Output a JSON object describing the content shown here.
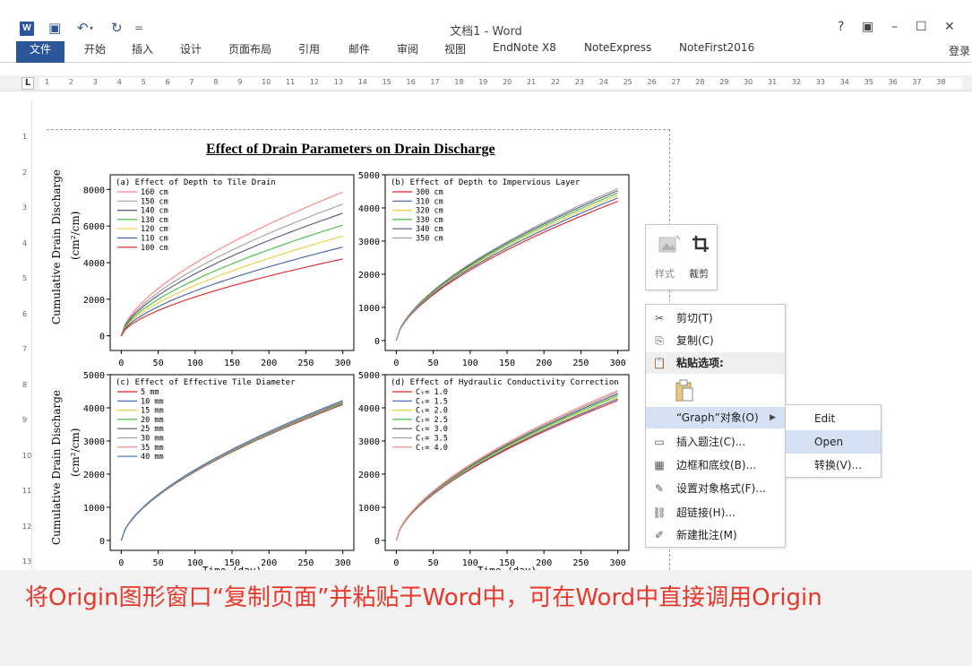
{
  "window": {
    "title": "文档1 - Word",
    "help_glyph": "?",
    "ribbon_display_glyph": "▣",
    "minimize_glyph": "–",
    "maximize_glyph": "☐",
    "close_glyph": "✕",
    "app_icon_text": "W",
    "save_glyph": "▣",
    "undo_glyph": "↶",
    "redo_glyph": "↻",
    "customize_glyph": "="
  },
  "ribbon": {
    "tabs": [
      "文件",
      "开始",
      "插入",
      "设计",
      "页面布局",
      "引用",
      "邮件",
      "审阅",
      "视图",
      "EndNote X8",
      "NoteExpress",
      "NoteFirst2016"
    ],
    "login": "登录"
  },
  "ruler": {
    "corner": "L",
    "numbers": [
      "1",
      "2",
      "3",
      "4",
      "5",
      "6",
      "7",
      "8",
      "9",
      "10",
      "11",
      "12",
      "13",
      "14",
      "15",
      "16",
      "17",
      "18",
      "19",
      "20",
      "21",
      "22",
      "23",
      "24",
      "25",
      "26",
      "27",
      "28",
      "29",
      "30",
      "31",
      "32",
      "33",
      "34",
      "35",
      "36",
      "37",
      "38"
    ],
    "vertical_numbers": [
      "1",
      "2",
      "3",
      "4",
      "5",
      "6",
      "7",
      "8",
      "9",
      "10",
      "11",
      "12",
      "13"
    ]
  },
  "figure": {
    "title": "Effect of Drain Parameters on Drain Discharge",
    "ylabel_main": "Cumulative Drain Discharge",
    "ylabel_unit": "(cm²/cm)",
    "x_ticks": [
      "0",
      "50",
      "100",
      "150",
      "200",
      "250",
      "300"
    ],
    "xlabel_partial": "Time (day)"
  },
  "chart_data": [
    {
      "type": "line",
      "title": "(a) Effect of Depth to Tile Drain",
      "ylim": [
        -800,
        8800
      ],
      "xlim": [
        -15,
        315
      ],
      "y_ticks": [
        0,
        2000,
        4000,
        6000,
        8000
      ],
      "x_ticks": [
        0,
        50,
        100,
        150,
        200,
        250,
        300
      ],
      "legend_position": "top-left",
      "series": [
        {
          "name": "160 cm",
          "color": "#ff8080",
          "end_value": 7850
        },
        {
          "name": "150 cm",
          "color": "#a0a0a0",
          "end_value": 7200
        },
        {
          "name": "140 cm",
          "color": "#555577",
          "end_value": 6700
        },
        {
          "name": "130 cm",
          "color": "#40c040",
          "end_value": 6050
        },
        {
          "name": "120 cm",
          "color": "#e8d040",
          "end_value": 5450
        },
        {
          "name": "110 cm",
          "color": "#4060b0",
          "end_value": 4850
        },
        {
          "name": "100 cm",
          "color": "#e02020",
          "end_value": 4200
        }
      ]
    },
    {
      "type": "line",
      "title": "(b)  Effect of Depth to Impervious Layer",
      "ylim": [
        -300,
        5000
      ],
      "xlim": [
        -15,
        315
      ],
      "y_ticks": [
        0,
        1000,
        2000,
        3000,
        4000,
        5000
      ],
      "x_ticks": [
        0,
        50,
        100,
        150,
        200,
        250,
        300
      ],
      "legend_position": "top-left",
      "series": [
        {
          "name": "300 cm",
          "color": "#e02020",
          "end_value": 4200
        },
        {
          "name": "310 cm",
          "color": "#4060b0",
          "end_value": 4300
        },
        {
          "name": "320 cm",
          "color": "#e8d040",
          "end_value": 4380
        },
        {
          "name": "330 cm",
          "color": "#40c040",
          "end_value": 4450
        },
        {
          "name": "340 cm",
          "color": "#555577",
          "end_value": 4520
        },
        {
          "name": "350 cm",
          "color": "#a0a0a0",
          "end_value": 4580
        }
      ]
    },
    {
      "type": "line",
      "title": "(c) Effect of Effective Tile Diameter",
      "ylim": [
        -300,
        5000
      ],
      "xlim": [
        -15,
        315
      ],
      "y_ticks": [
        0,
        1000,
        2000,
        3000,
        4000,
        5000
      ],
      "x_ticks": [
        0,
        50,
        100,
        150,
        200,
        250,
        300
      ],
      "legend_position": "top-left",
      "series": [
        {
          "name": "5 mm",
          "color": "#e02020",
          "end_value": 4100
        },
        {
          "name": "10 mm",
          "color": "#4060b0",
          "end_value": 4120
        },
        {
          "name": "15 mm",
          "color": "#e8d040",
          "end_value": 4140
        },
        {
          "name": "20 mm",
          "color": "#40c040",
          "end_value": 4160
        },
        {
          "name": "25 mm",
          "color": "#555577",
          "end_value": 4175
        },
        {
          "name": "30 mm",
          "color": "#a0a0a0",
          "end_value": 4190
        },
        {
          "name": "35 mm",
          "color": "#ff8080",
          "end_value": 4205
        },
        {
          "name": "40 mm",
          "color": "#4080c0",
          "end_value": 4220
        }
      ]
    },
    {
      "type": "line",
      "title": "(d)  Effect of Hydraulic Conductivity Correction",
      "ylim": [
        -300,
        5000
      ],
      "xlim": [
        -15,
        315
      ],
      "y_ticks": [
        0,
        1000,
        2000,
        3000,
        4000,
        5000
      ],
      "x_ticks": [
        0,
        50,
        100,
        150,
        200,
        250,
        300
      ],
      "legend_position": "top-left",
      "series": [
        {
          "name": "Cₜ= 1.0",
          "color": "#e02020",
          "end_value": 4220
        },
        {
          "name": "Cₜ= 1.5",
          "color": "#4060b0",
          "end_value": 4270
        },
        {
          "name": "Cₜ= 2.0",
          "color": "#e8d040",
          "end_value": 4320
        },
        {
          "name": "Cₜ= 2.5",
          "color": "#40c040",
          "end_value": 4370
        },
        {
          "name": "Cₜ= 3.0",
          "color": "#555577",
          "end_value": 4420
        },
        {
          "name": "Cₜ= 3.5",
          "color": "#a0a0a0",
          "end_value": 4470
        },
        {
          "name": "Cₜ= 4.0",
          "color": "#ff8080",
          "end_value": 4520
        }
      ]
    }
  ],
  "mini_toolbar": {
    "style_label": "样式",
    "crop_label": "裁剪"
  },
  "context_menu": {
    "items": [
      {
        "icon": "✂",
        "label": "剪切(T)"
      },
      {
        "icon": "⎘",
        "label": "复制(C)"
      },
      {
        "icon": "📋",
        "label": "粘贴选项:"
      },
      {
        "icon": "",
        "label": ""
      },
      {
        "icon": "",
        "label": "“Graph”对象(O)"
      },
      {
        "icon": "▭",
        "label": "插入题注(C)..."
      },
      {
        "icon": "▦",
        "label": "边框和底纹(B)..."
      },
      {
        "icon": "✎",
        "label": "设置对象格式(F)..."
      },
      {
        "icon": "⛓",
        "label": "超链接(H)..."
      },
      {
        "icon": "✐",
        "label": "新建批注(M)"
      }
    ],
    "submenu_arrow": "▶"
  },
  "submenu": {
    "items": [
      "Edit",
      "Open",
      "转换(V)..."
    ]
  },
  "caption": {
    "text": "将Origin图形窗口“复制页面”并粘贴于Word中，可在Word中直接调用Origin"
  },
  "colors": {
    "word_blue": "#2b579a",
    "caption_red": "#e8382a",
    "hover_blue": "#d5e1f2"
  }
}
